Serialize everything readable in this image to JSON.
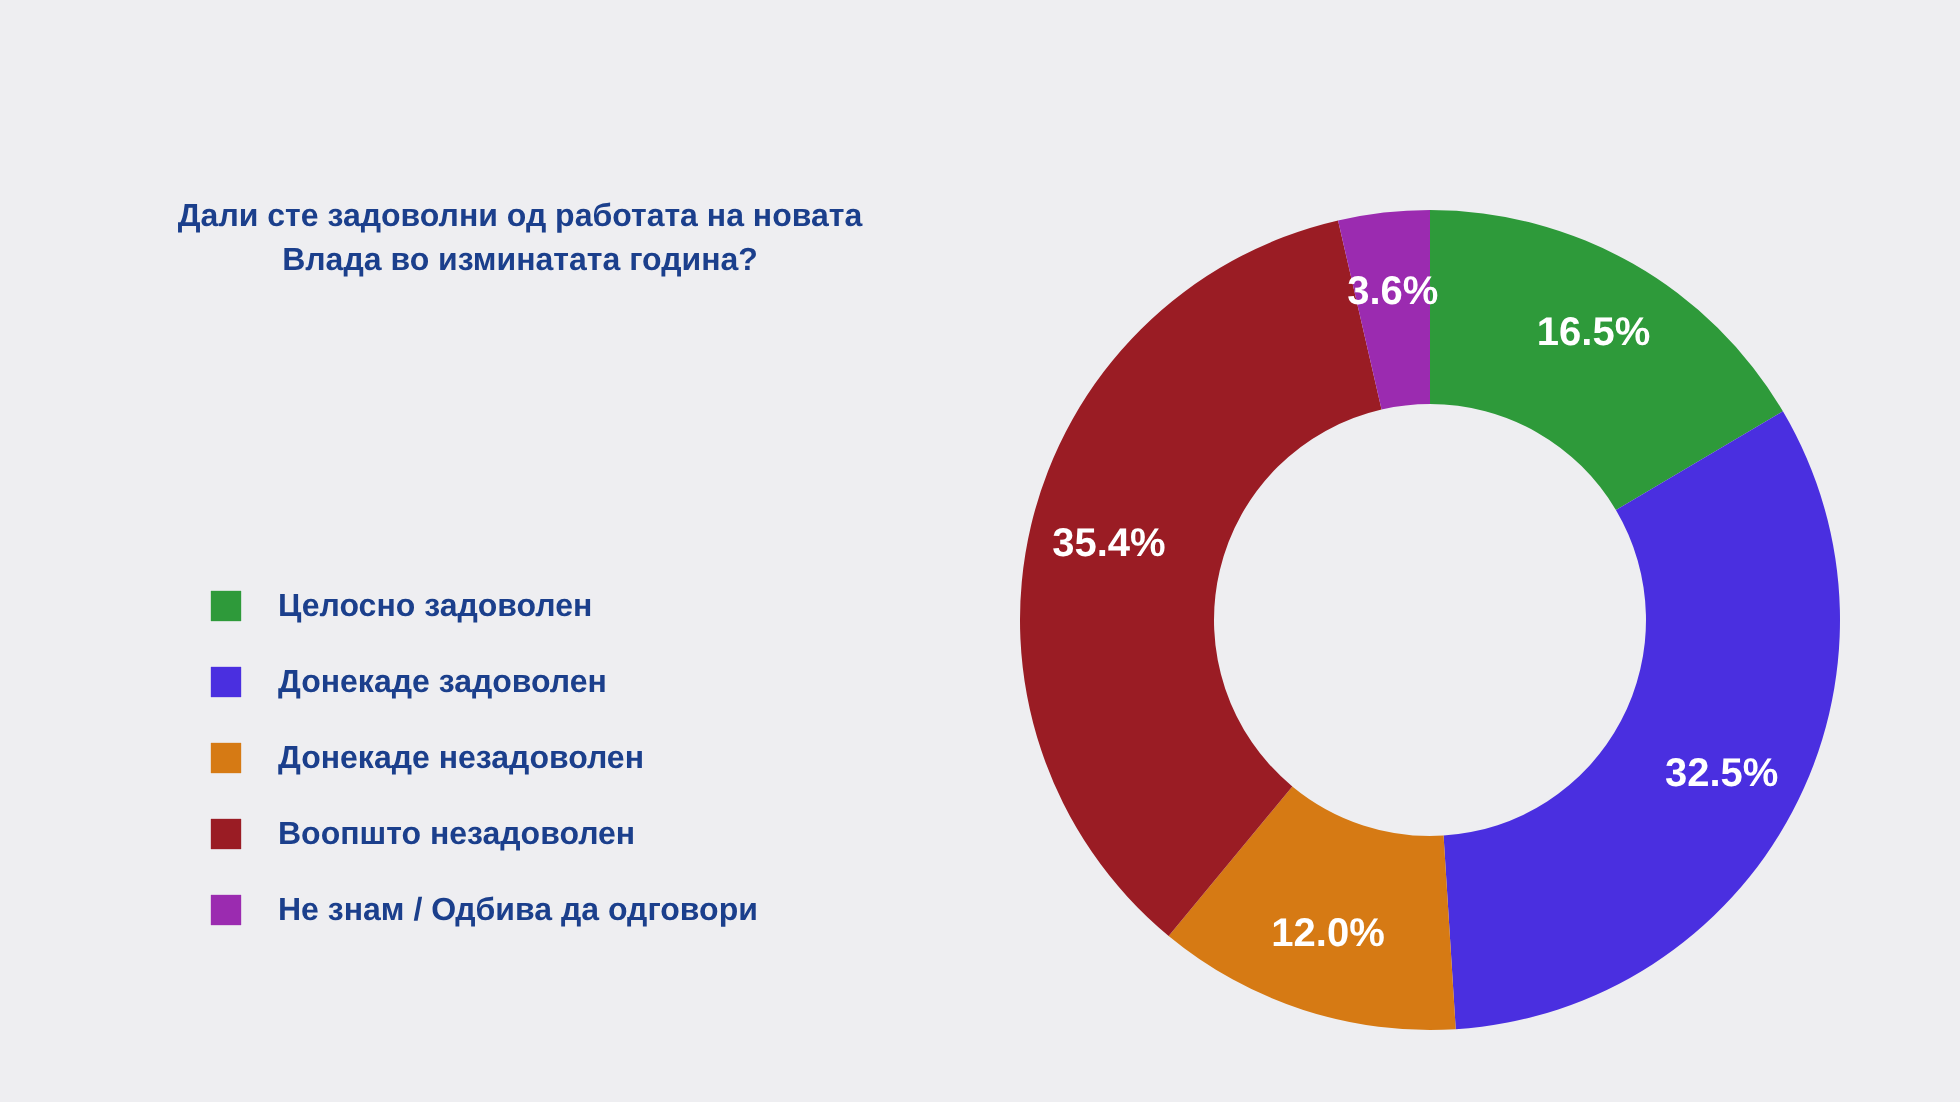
{
  "chart_data": {
    "type": "donut",
    "title": "Дали сте задоволни од работата на новата Влада во изминатата година?",
    "categories": [
      "Целосно задоволен",
      "Донекаде задоволен",
      "Донекаде незадоволен",
      "Воопшто незадоволен",
      "Не знам / Одбива да одговори"
    ],
    "values": [
      16.5,
      32.5,
      12.0,
      35.4,
      3.6
    ],
    "colors": [
      "#2e9a3a",
      "#4a2fe0",
      "#d67a14",
      "#9a1c24",
      "#9b2bb0"
    ],
    "value_labels": [
      "16.5%",
      "32.5%",
      "12.0%",
      "35.4%",
      "3.6%"
    ],
    "legend": "left"
  }
}
